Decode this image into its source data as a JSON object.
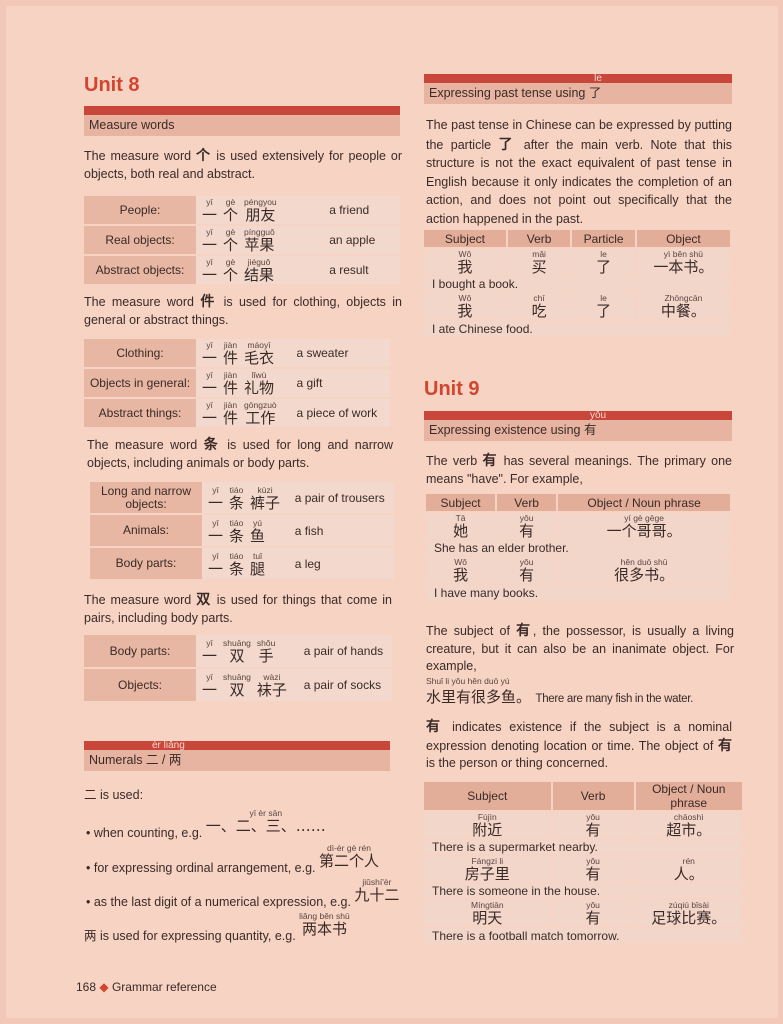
{
  "unit8": {
    "title": "Unit 8",
    "measure_header": "Measure words",
    "para1": {
      "pre": "The measure word ",
      "char": "个",
      "post": " is used extensively for people or objects, both real and abstract."
    },
    "table1": [
      {
        "label": "People:",
        "words": [
          {
            "py": "yī",
            "hz": "一"
          },
          {
            "py": "gè",
            "hz": "个"
          },
          {
            "py": "péngyou",
            "hz": "朋友"
          }
        ],
        "meaning": "a friend"
      },
      {
        "label": "Real objects:",
        "words": [
          {
            "py": "yī",
            "hz": "一"
          },
          {
            "py": "gè",
            "hz": "个"
          },
          {
            "py": "píngguǒ",
            "hz": "苹果"
          }
        ],
        "meaning": "an apple"
      },
      {
        "label": "Abstract objects:",
        "words": [
          {
            "py": "yī",
            "hz": "一"
          },
          {
            "py": "gè",
            "hz": "个"
          },
          {
            "py": "jiéguǒ",
            "hz": "结果"
          }
        ],
        "meaning": "a result"
      }
    ],
    "para2": {
      "pre": "The measure word ",
      "char": "件",
      "post": " is used for clothing, objects in general or abstract things."
    },
    "table2": [
      {
        "label": "Clothing:",
        "words": [
          {
            "py": "yī",
            "hz": "一"
          },
          {
            "py": "jiàn",
            "hz": "件"
          },
          {
            "py": "máoyī",
            "hz": "毛衣"
          }
        ],
        "meaning": "a sweater"
      },
      {
        "label": "Objects in general:",
        "words": [
          {
            "py": "yī",
            "hz": "一"
          },
          {
            "py": "jiàn",
            "hz": "件"
          },
          {
            "py": "lǐwù",
            "hz": "礼物"
          }
        ],
        "meaning": "a gift"
      },
      {
        "label": "Abstract things:",
        "words": [
          {
            "py": "yī",
            "hz": "一"
          },
          {
            "py": "jiàn",
            "hz": "件"
          },
          {
            "py": "gōngzuò",
            "hz": "工作"
          }
        ],
        "meaning": "a piece of work"
      }
    ],
    "para3": {
      "pre": "The measure word ",
      "char": "条",
      "post": " is used for long and narrow objects, including animals or body parts."
    },
    "table3": [
      {
        "label": "Long and narrow objects:",
        "words": [
          {
            "py": "yī",
            "hz": "一"
          },
          {
            "py": "tiáo",
            "hz": "条"
          },
          {
            "py": "kùzi",
            "hz": "裤子"
          }
        ],
        "meaning": "a pair of trousers"
      },
      {
        "label": "Animals:",
        "words": [
          {
            "py": "yī",
            "hz": "一"
          },
          {
            "py": "tiáo",
            "hz": "条"
          },
          {
            "py": "yú",
            "hz": "鱼"
          }
        ],
        "meaning": "a fish"
      },
      {
        "label": "Body parts:",
        "words": [
          {
            "py": "yī",
            "hz": "一"
          },
          {
            "py": "tiáo",
            "hz": "条"
          },
          {
            "py": "tuǐ",
            "hz": "腿"
          }
        ],
        "meaning": "a leg"
      }
    ],
    "para4": {
      "pre": "The measure word ",
      "char": "双",
      "post": " is used for things that come in pairs, including body parts."
    },
    "table4": [
      {
        "label": "Body parts:",
        "words": [
          {
            "py": "yī",
            "hz": "一"
          },
          {
            "py": "shuāng",
            "hz": "双"
          },
          {
            "py": "shǒu",
            "hz": "手"
          }
        ],
        "meaning": "a pair of hands"
      },
      {
        "label": "Objects:",
        "words": [
          {
            "py": "yī",
            "hz": "一"
          },
          {
            "py": "shuāng",
            "hz": "双"
          },
          {
            "py": "wàzi",
            "hz": "袜子"
          }
        ],
        "meaning": "a pair of socks"
      }
    ],
    "numerals": {
      "pinyin": "èr    liǎng",
      "header": "Numerals 二 / 两",
      "intro": "二 is used:",
      "bullets": [
        {
          "text": "when counting, e.g. ",
          "py": "yī    èr    sān",
          "hz": "一、二、三、……"
        },
        {
          "text": "for expressing ordinal arrangement, e.g. ",
          "py": "dì-èr gè rén",
          "hz": "第二个人"
        },
        {
          "text": "as the last digit of a numerical expression, e.g. ",
          "py": "jiǔshí'èr",
          "hz": "九十二"
        }
      ],
      "liang": {
        "text": "两 is used for expressing quantity, e.g. ",
        "py": "liǎng běn shū",
        "hz": "两本书"
      }
    }
  },
  "past": {
    "pinyin": "le",
    "header": "Expressing past tense using 了",
    "para": {
      "pre": "The past tense in Chinese can be expressed by putting the particle ",
      "char": "了",
      "post": " after the main verb. Note that this structure is not the exact equivalent of past tense in English because it only indicates the completion of an action, and does not point out specifically that the action happened in the past."
    },
    "columns": [
      "Subject",
      "Verb",
      "Particle",
      "Object"
    ],
    "rows": [
      {
        "cells": [
          {
            "py": "Wǒ",
            "hz": "我"
          },
          {
            "py": "mǎi",
            "hz": "买"
          },
          {
            "py": "le",
            "hz": "了"
          },
          {
            "py": "yì běn shū",
            "hz": "一本书。"
          }
        ],
        "translation": "I bought a book."
      },
      {
        "cells": [
          {
            "py": "Wǒ",
            "hz": "我"
          },
          {
            "py": "chī",
            "hz": "吃"
          },
          {
            "py": "le",
            "hz": "了"
          },
          {
            "py": "Zhōngcān",
            "hz": "中餐。"
          }
        ],
        "translation": "I ate Chinese food."
      }
    ]
  },
  "unit9": {
    "title": "Unit 9",
    "pinyin": "yǒu",
    "header": "Expressing existence using 有",
    "para1": {
      "pre": "The verb ",
      "char": "有",
      "post": " has several meanings. The primary one means \"have\". For example,"
    },
    "columns": [
      "Subject",
      "Verb",
      "Object / Noun phrase"
    ],
    "rows": [
      {
        "cells": [
          {
            "py": "Tā",
            "hz": "她"
          },
          {
            "py": "yǒu",
            "hz": "有"
          },
          {
            "py": "yí gè gēge",
            "hz": "一个哥哥。"
          }
        ],
        "translation": "She has an elder brother."
      },
      {
        "cells": [
          {
            "py": "Wǒ",
            "hz": "我"
          },
          {
            "py": "yǒu",
            "hz": "有"
          },
          {
            "py": "hěn duō shū",
            "hz": "很多书。"
          }
        ],
        "translation": "I have many books."
      }
    ],
    "para2": {
      "pre": "The subject of ",
      "char": "有",
      "post": ", the possessor, is usually a living creature, but it can also be an inanimate object. For example,"
    },
    "example": {
      "py": "Shuǐ li yǒu hěn duō yú",
      "hz": "水里有很多鱼。",
      "en": "There are many fish in the water."
    },
    "para3": {
      "pre": "",
      "char": "有",
      "post": " indicates existence if the subject is a nominal expression denoting location or time. The object of ",
      "char2": "有",
      "post2": " is the person or thing concerned."
    },
    "columns2": [
      "Subject",
      "Verb",
      "Object / Noun phrase"
    ],
    "rows2": [
      {
        "cells": [
          {
            "py": "Fùjìn",
            "hz": "附近"
          },
          {
            "py": "yǒu",
            "hz": "有"
          },
          {
            "py": "chāoshì",
            "hz": "超市。"
          }
        ],
        "translation": "There is a supermarket nearby."
      },
      {
        "cells": [
          {
            "py": "Fángzi li",
            "hz": "房子里"
          },
          {
            "py": "yǒu",
            "hz": "有"
          },
          {
            "py": "rén",
            "hz": "人。"
          }
        ],
        "translation": "There is someone in the house."
      },
      {
        "cells": [
          {
            "py": "Míngtiān",
            "hz": "明天"
          },
          {
            "py": "yǒu",
            "hz": "有"
          },
          {
            "py": "zúqiú bǐsài",
            "hz": "足球比赛。"
          }
        ],
        "translation": "There is a football match tomorrow."
      }
    ]
  },
  "footer": {
    "page": "168",
    "icon": "diamond-icon",
    "label": "Grammar reference"
  }
}
